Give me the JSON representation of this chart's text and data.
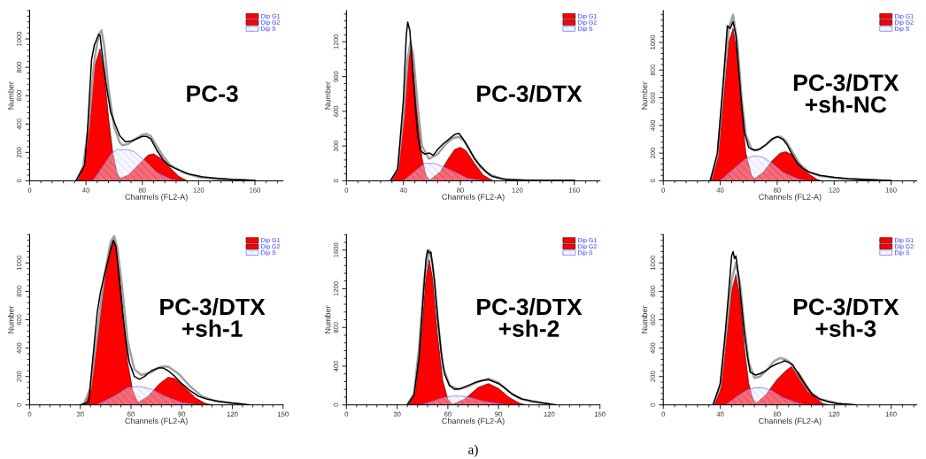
{
  "chart_data": [
    {
      "type": "area",
      "title": "PC-3",
      "xlabel": "Channels (FL2-A)",
      "ylabel": "Number",
      "xlim": [
        0,
        180
      ],
      "ylim": [
        0,
        1200
      ],
      "xticks": [
        0,
        40,
        80,
        120,
        160
      ],
      "yticks": [
        0,
        200,
        400,
        600,
        800,
        1000
      ],
      "legend": "top right",
      "series": [
        {
          "name": "Dip G1",
          "color": "#ff0000",
          "x": [
            33,
            38,
            42,
            46,
            50,
            53,
            56,
            59,
            62,
            65
          ],
          "values": [
            0,
            80,
            400,
            800,
            930,
            750,
            450,
            200,
            60,
            0
          ]
        },
        {
          "name": "Dip G2",
          "color": "#ff0000",
          "x": [
            60,
            70,
            78,
            84,
            88,
            93,
            100,
            106,
            112
          ],
          "values": [
            0,
            40,
            120,
            180,
            190,
            160,
            90,
            30,
            0
          ]
        },
        {
          "name": "Dip S",
          "color": "#8080ff",
          "x": [
            45,
            52,
            58,
            62,
            70,
            75,
            82,
            90,
            100,
            105
          ],
          "values": [
            0,
            100,
            190,
            220,
            220,
            200,
            140,
            60,
            10,
            0
          ]
        },
        {
          "type": "line",
          "color": "#a0a0a0",
          "x": [
            33,
            38,
            42,
            46,
            49,
            51,
            53,
            56,
            60,
            64,
            66,
            70,
            76,
            80,
            83,
            86,
            90,
            95,
            100,
            110,
            120,
            135,
            160
          ],
          "values": [
            0,
            100,
            400,
            850,
            1030,
            1060,
            950,
            650,
            380,
            270,
            250,
            260,
            300,
            325,
            330,
            315,
            250,
            170,
            110,
            55,
            25,
            10,
            2
          ]
        },
        {
          "type": "line",
          "color": "#000000",
          "x": [
            33,
            39,
            41,
            44,
            46,
            49,
            50,
            52,
            54.5,
            57.6,
            60.7,
            64,
            68,
            72,
            76,
            80,
            83,
            86,
            90.5,
            94.6,
            98.7,
            103,
            107,
            113,
            123,
            134,
            144,
            154,
            160
          ],
          "values": [
            0,
            110,
            337,
            855,
            958,
            1031,
            1025,
            855,
            669,
            482,
            400,
            317,
            275,
            280,
            296,
            313,
            313,
            296,
            213,
            151,
            110,
            89,
            72,
            48,
            27,
            17,
            10,
            6,
            2
          ]
        }
      ]
    },
    {
      "type": "area",
      "title": "PC-3/DTX",
      "xlabel": "Channels (FL2-A)",
      "ylabel": "Number",
      "xlim": [
        0,
        178
      ],
      "ylim": [
        0,
        1470
      ],
      "xticks": [
        0,
        40,
        80,
        120,
        160
      ],
      "yticks": [
        0,
        300,
        600,
        900,
        1200
      ],
      "legend": "top right",
      "series": [
        {
          "name": "Dip G1",
          "color": "#ff0000",
          "x": [
            31,
            36,
            40,
            43,
            45,
            47,
            50,
            53,
            56,
            59
          ],
          "values": [
            0,
            100,
            500,
            1000,
            1150,
            1000,
            550,
            200,
            40,
            0
          ]
        },
        {
          "name": "Dip G2",
          "color": "#ff0000",
          "x": [
            58,
            66,
            72,
            76,
            80,
            84,
            90,
            96,
            103
          ],
          "values": [
            0,
            80,
            200,
            270,
            290,
            260,
            150,
            50,
            0
          ]
        },
        {
          "name": "Dip S",
          "color": "#8080ff",
          "x": [
            40,
            48,
            55,
            62,
            66,
            75,
            85,
            95
          ],
          "values": [
            0,
            80,
            150,
            150,
            130,
            80,
            20,
            0
          ]
        },
        {
          "type": "line",
          "color": "#a0a0a0",
          "x": [
            31,
            36,
            40,
            43,
            45,
            47,
            50,
            53,
            58,
            64,
            70,
            75,
            79,
            83,
            88,
            94,
            100,
            110,
            125,
            160
          ],
          "values": [
            0,
            100,
            550,
            1050,
            1200,
            1080,
            650,
            300,
            190,
            230,
            320,
            370,
            380,
            340,
            230,
            120,
            55,
            15,
            5,
            3
          ]
        },
        {
          "type": "line",
          "color": "#000000",
          "x": [
            31,
            36,
            40,
            42,
            43,
            44.5,
            46,
            48,
            50,
            52,
            55,
            58,
            61,
            64,
            68,
            72,
            76,
            79,
            82,
            86,
            90,
            94,
            98,
            102,
            108,
            115,
            125,
            140,
            160
          ],
          "values": [
            0,
            100,
            700,
            1250,
            1370,
            1300,
            1050,
            700,
            400,
            260,
            230,
            240,
            220,
            270,
            320,
            360,
            400,
            410,
            360,
            280,
            190,
            130,
            80,
            40,
            20,
            8,
            5,
            3,
            3
          ]
        }
      ]
    },
    {
      "type": "area",
      "title": "PC-3/DTX\n+sh-NC",
      "xlabel": "Channels (FL2-A)",
      "ylabel": "Number",
      "xlim": [
        0,
        178
      ],
      "ylim": [
        0,
        1230
      ],
      "xticks": [
        0,
        40,
        80,
        120,
        160
      ],
      "yticks": [
        0,
        200,
        400,
        600,
        800,
        1000
      ],
      "legend": "top right",
      "series": [
        {
          "name": "Dip G1",
          "color": "#ff0000",
          "x": [
            33,
            38,
            42,
            46,
            49,
            52,
            55,
            58,
            62,
            65
          ],
          "values": [
            0,
            150,
            550,
            1000,
            1100,
            900,
            500,
            200,
            40,
            0
          ]
        },
        {
          "name": "Dip G2",
          "color": "#ff0000",
          "x": [
            62,
            70,
            76,
            82,
            86,
            90,
            96,
            102,
            108,
            111
          ],
          "values": [
            0,
            60,
            140,
            200,
            210,
            190,
            120,
            50,
            10,
            0
          ]
        },
        {
          "name": "Dip S",
          "color": "#8080ff",
          "x": [
            40,
            50,
            58,
            64,
            70,
            76,
            84,
            95,
            100
          ],
          "values": [
            0,
            90,
            160,
            180,
            170,
            130,
            60,
            10,
            0
          ]
        },
        {
          "type": "line",
          "color": "#a0a0a0",
          "x": [
            33,
            38,
            42,
            46,
            49,
            52,
            55,
            58,
            62,
            66,
            72,
            78,
            82,
            86,
            90,
            96,
            102,
            110,
            125,
            150
          ],
          "values": [
            0,
            180,
            650,
            1100,
            1200,
            1000,
            600,
            330,
            230,
            220,
            260,
            310,
            320,
            290,
            220,
            120,
            65,
            35,
            15,
            5
          ]
        },
        {
          "type": "line",
          "color": "#000000",
          "x": [
            33,
            38,
            42,
            45,
            47,
            49,
            51,
            53,
            55,
            57,
            60,
            64,
            68,
            72,
            76,
            80,
            84,
            87,
            90,
            94,
            98,
            103,
            110,
            120,
            130,
            140,
            150,
            160
          ],
          "values": [
            0,
            200,
            700,
            1120,
            1100,
            1150,
            1050,
            800,
            550,
            350,
            240,
            220,
            230,
            260,
            300,
            320,
            300,
            260,
            200,
            130,
            90,
            60,
            40,
            25,
            15,
            10,
            6,
            3
          ]
        }
      ]
    },
    {
      "type": "area",
      "title": "PC-3/DTX\n+sh-1",
      "xlabel": "Channels (FL2-A)",
      "ylabel": "Number",
      "xlim": [
        0,
        150
      ],
      "ylim": [
        0,
        1200
      ],
      "xticks": [
        0,
        30,
        60,
        90,
        120,
        150
      ],
      "yticks": [
        0,
        200,
        400,
        600,
        800,
        1000
      ],
      "legend": "top right",
      "series": [
        {
          "name": "Dip G1",
          "color": "#ff0000",
          "x": [
            32,
            36,
            40,
            44,
            48,
            50,
            52,
            55,
            58,
            61,
            64,
            66
          ],
          "values": [
            0,
            100,
            450,
            850,
            1100,
            1150,
            1050,
            700,
            300,
            100,
            20,
            0
          ]
        },
        {
          "name": "Dip G2",
          "color": "#ff0000",
          "x": [
            62,
            70,
            77,
            82,
            86,
            92,
            98,
            104,
            108
          ],
          "values": [
            0,
            60,
            150,
            195,
            185,
            120,
            50,
            10,
            0
          ]
        },
        {
          "name": "Dip S",
          "color": "#8080ff",
          "x": [
            40,
            50,
            58,
            65,
            72,
            80,
            90,
            98
          ],
          "values": [
            0,
            60,
            120,
            130,
            110,
            60,
            15,
            0
          ]
        },
        {
          "type": "line",
          "color": "#a0a0a0",
          "x": [
            32,
            36,
            40,
            44,
            48,
            50,
            52,
            55,
            58,
            62,
            66,
            72,
            78,
            82,
            88,
            95,
            102,
            110,
            125
          ],
          "values": [
            0,
            120,
            500,
            900,
            1150,
            1190,
            1100,
            800,
            450,
            250,
            210,
            230,
            270,
            270,
            220,
            130,
            60,
            25,
            5
          ]
        },
        {
          "type": "line",
          "color": "#000000",
          "x": [
            30,
            35,
            36,
            38,
            40,
            42,
            44,
            46,
            48,
            49.5,
            51,
            53,
            55,
            57,
            59,
            62,
            65,
            68,
            72,
            76,
            79,
            82,
            86,
            90,
            95,
            100,
            105,
            112,
            120,
            128,
            130
          ],
          "values": [
            0,
            20,
            150,
            400,
            650,
            800,
            900,
            1000,
            1100,
            1160,
            1120,
            900,
            650,
            450,
            300,
            200,
            180,
            200,
            240,
            260,
            260,
            240,
            200,
            150,
            100,
            60,
            40,
            25,
            12,
            3,
            0
          ]
        }
      ]
    },
    {
      "type": "area",
      "title": "PC-3/DTX\n+sh-2",
      "xlabel": "Channels (FL2-A)",
      "ylabel": "Number",
      "xlim": [
        0,
        150
      ],
      "ylim": [
        0,
        1760
      ],
      "xticks": [
        0,
        30,
        60,
        90,
        120,
        150
      ],
      "yticks": [
        0,
        400,
        800,
        1200,
        1600
      ],
      "legend": "top right",
      "annotations": [
        "a)"
      ],
      "series": [
        {
          "name": "Dip G1",
          "color": "#ff0000",
          "x": [
            37,
            41,
            44,
            47,
            49,
            51,
            54,
            57,
            60,
            63
          ],
          "values": [
            0,
            150,
            600,
            1300,
            1500,
            1300,
            700,
            250,
            60,
            0
          ]
        },
        {
          "name": "Dip G2",
          "color": "#ff0000",
          "x": [
            62,
            70,
            78,
            84,
            90,
            96,
            102,
            106
          ],
          "values": [
            0,
            60,
            180,
            220,
            170,
            80,
            20,
            0
          ]
        },
        {
          "name": "Dip S",
          "color": "#8080ff",
          "x": [
            45,
            55,
            62,
            68,
            74,
            80,
            90,
            95
          ],
          "values": [
            0,
            60,
            90,
            90,
            70,
            40,
            10,
            0
          ]
        },
        {
          "type": "line",
          "color": "#a0a0a0",
          "x": [
            36,
            40,
            43,
            46,
            49,
            51,
            54,
            57,
            61,
            66,
            72,
            78,
            84,
            90,
            96,
            102,
            110,
            120
          ],
          "values": [
            0,
            120,
            600,
            1300,
            1600,
            1450,
            900,
            400,
            200,
            160,
            190,
            240,
            270,
            230,
            140,
            70,
            30,
            10
          ]
        },
        {
          "type": "line",
          "color": "#000000",
          "x": [
            36,
            40,
            43,
            45,
            47,
            48,
            49,
            50,
            52,
            54,
            56,
            58,
            61,
            64,
            68,
            72,
            76,
            80,
            84,
            87,
            90,
            94,
            98,
            104,
            110,
            116,
            120,
            124
          ],
          "values": [
            0,
            100,
            500,
            1000,
            1500,
            1600,
            1570,
            1580,
            1300,
            900,
            550,
            320,
            200,
            160,
            170,
            200,
            230,
            250,
            260,
            240,
            220,
            170,
            110,
            60,
            40,
            20,
            10,
            0
          ]
        }
      ]
    },
    {
      "type": "area",
      "title": "PC-3/DTX\n+sh-3",
      "xlabel": "Channels (FL2-A)",
      "ylabel": "Number",
      "xlim": [
        0,
        178
      ],
      "ylim": [
        0,
        1200
      ],
      "xticks": [
        0,
        40,
        80,
        120,
        160
      ],
      "yticks": [
        0,
        200,
        400,
        600,
        800,
        1000
      ],
      "legend": "top right",
      "series": [
        {
          "name": "Dip G1",
          "color": "#ff0000",
          "x": [
            36,
            40,
            44,
            48,
            51,
            54,
            57,
            60,
            63,
            66
          ],
          "values": [
            0,
            100,
            450,
            800,
            920,
            750,
            400,
            150,
            40,
            0
          ]
        },
        {
          "name": "Dip G2",
          "color": "#ff0000",
          "x": [
            64,
            72,
            80,
            86,
            90,
            95,
            100,
            106,
            112,
            116
          ],
          "values": [
            0,
            70,
            180,
            240,
            270,
            230,
            150,
            60,
            10,
            0
          ]
        },
        {
          "name": "Dip S",
          "color": "#8080ff",
          "x": [
            44,
            52,
            58,
            64,
            70,
            76,
            84,
            95,
            100
          ],
          "values": [
            0,
            60,
            100,
            120,
            120,
            100,
            50,
            10,
            0
          ]
        },
        {
          "type": "line",
          "color": "#a0a0a0",
          "x": [
            35,
            40,
            44,
            48,
            51,
            54,
            57,
            60,
            64,
            68,
            74,
            78,
            82,
            86,
            90,
            96,
            102,
            110,
            125
          ],
          "values": [
            0,
            130,
            500,
            880,
            1000,
            850,
            550,
            300,
            190,
            200,
            260,
            310,
            330,
            320,
            290,
            190,
            100,
            40,
            5
          ]
        },
        {
          "type": "line",
          "color": "#000000",
          "x": [
            35,
            40,
            43,
            46,
            48,
            49,
            50,
            51,
            53,
            55,
            57,
            59,
            61,
            63,
            65,
            68,
            72,
            76,
            80,
            83,
            85,
            88,
            91,
            94,
            97,
            101,
            105,
            110,
            116,
            122,
            130,
            135
          ],
          "values": [
            0,
            150,
            450,
            800,
            1050,
            1080,
            1030,
            1050,
            900,
            700,
            500,
            350,
            230,
            220,
            210,
            220,
            240,
            270,
            290,
            300,
            310,
            300,
            280,
            230,
            180,
            120,
            70,
            40,
            20,
            10,
            5,
            0
          ]
        }
      ]
    }
  ]
}
